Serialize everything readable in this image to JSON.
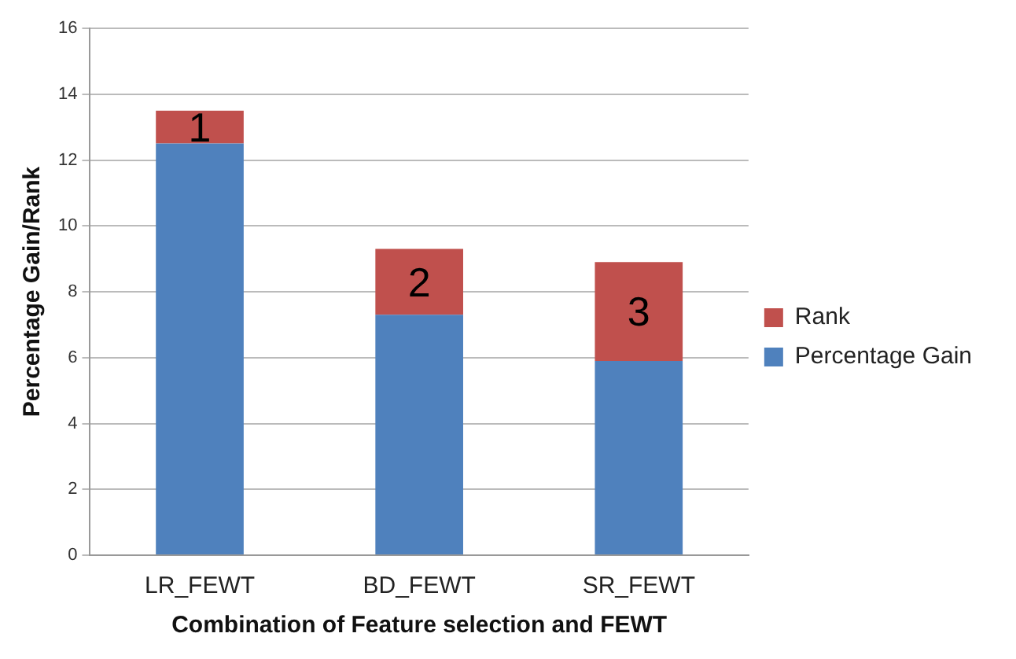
{
  "chart_data": {
    "type": "bar",
    "stacked": true,
    "xlabel": "Combination of Feature selection and FEWT",
    "ylabel": "Percentage Gain/Rank",
    "categories": [
      "LR_FEWT",
      "BD_FEWT",
      "SR_FEWT"
    ],
    "series": [
      {
        "name": "Percentage Gain",
        "color": "#4f81bd",
        "values": [
          12.5,
          7.3,
          5.9
        ]
      },
      {
        "name": "Rank",
        "color": "#c0504d",
        "values": [
          1,
          2,
          3
        ],
        "value_labels": [
          "1",
          "2",
          "3"
        ]
      }
    ],
    "ylim": [
      0,
      16
    ],
    "yticks": [
      0,
      2,
      4,
      6,
      8,
      10,
      12,
      14,
      16
    ],
    "grid": "y",
    "legend": "right"
  }
}
